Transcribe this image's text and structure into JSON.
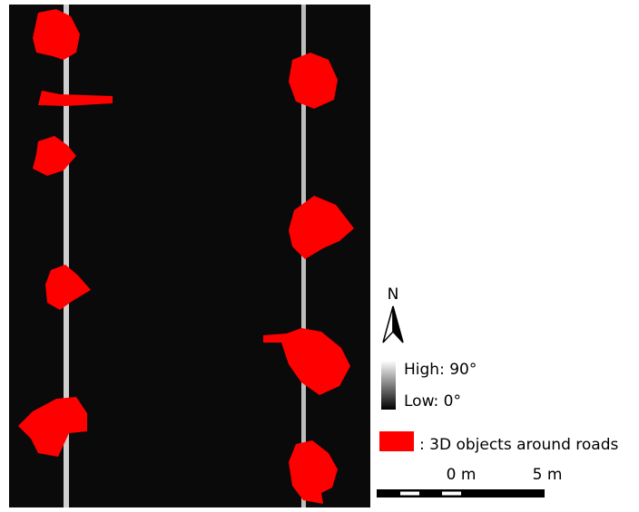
{
  "legend": {
    "north": "N",
    "high": "High: 90°",
    "low": "Low: 0°",
    "objects": ": 3D objects around roads"
  },
  "scale_bar": {
    "labels": [
      "0 m",
      "5 m"
    ]
  }
}
